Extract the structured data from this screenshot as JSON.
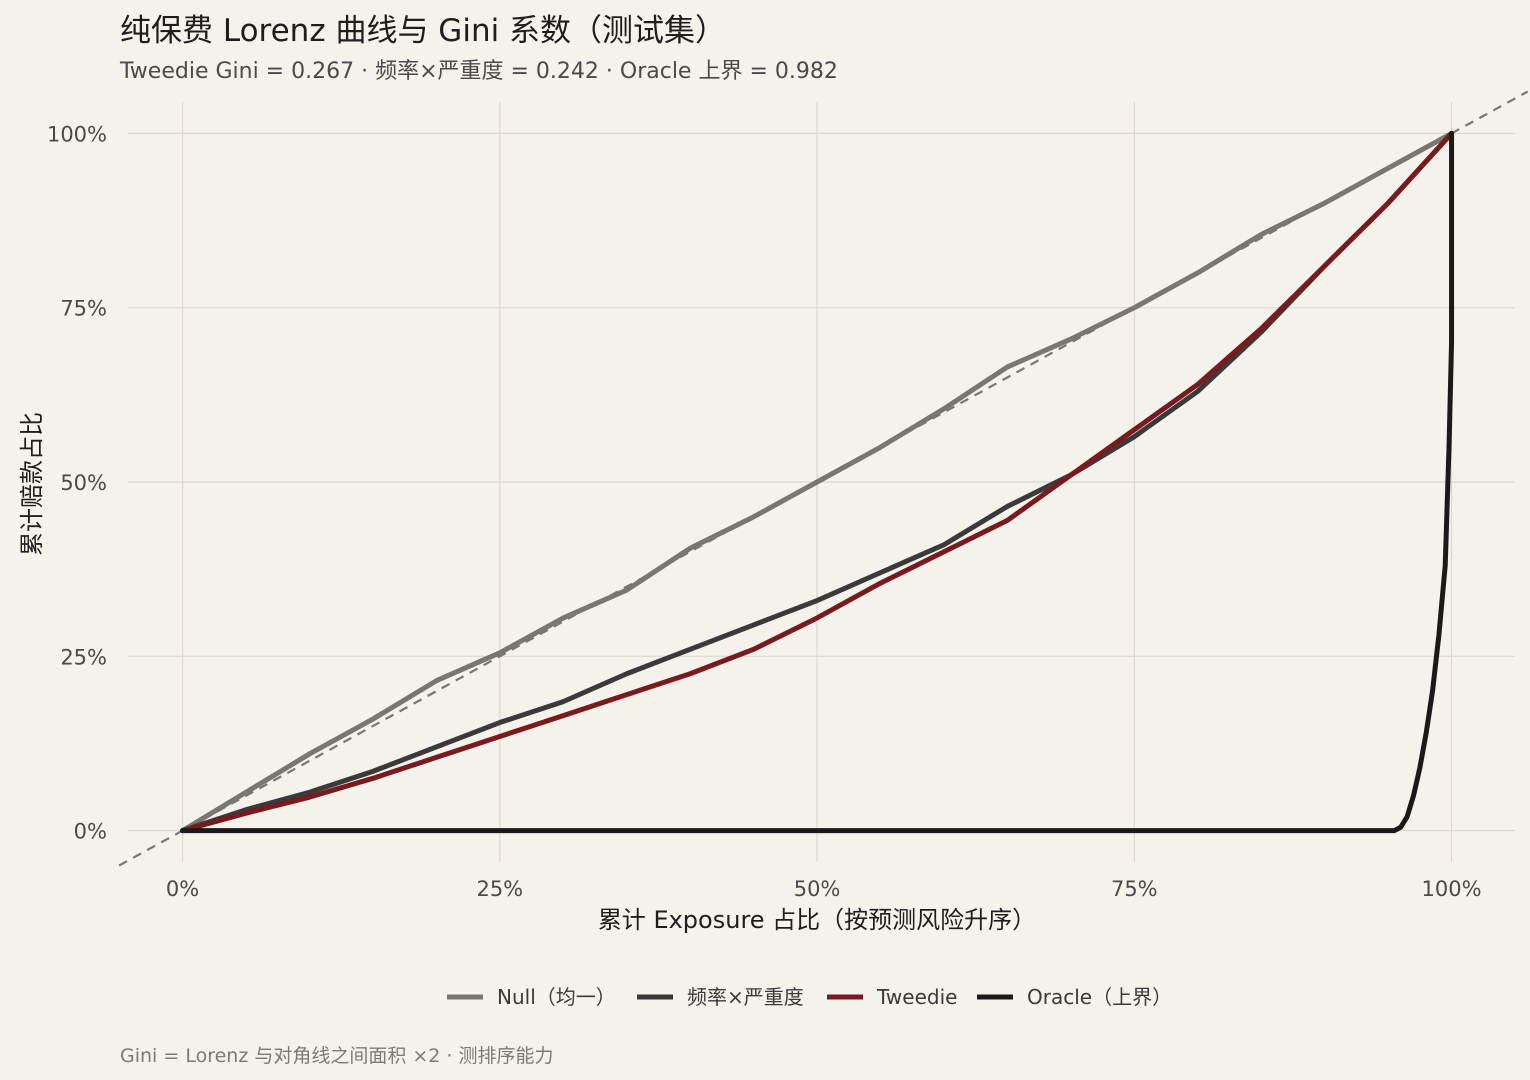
{
  "chart_data": {
    "type": "line",
    "title": "纯保费 Lorenz 曲线与 Gini 系数（测试集）",
    "subtitle": "Tweedie Gini = 0.267 ·   频率×严重度 = 0.242 ·   Oracle 上界 = 0.982",
    "xlabel": "累计 Exposure 占比（按预测风险升序）",
    "ylabel": "累计赔款占比",
    "caption": "Gini = Lorenz 与对角线之间面积 ×2 ·   测排序能力",
    "xlim": [
      -0.043,
      1.05
    ],
    "ylim": [
      -0.045,
      1.045
    ],
    "x_ticks": [
      0,
      0.25,
      0.5,
      0.75,
      1.0
    ],
    "x_tick_labels": [
      "0%",
      "25%",
      "50%",
      "75%",
      "100%"
    ],
    "y_ticks": [
      0,
      0.25,
      0.5,
      0.75,
      1.0
    ],
    "y_tick_labels": [
      "0%",
      "25%",
      "50%",
      "75%",
      "100%"
    ],
    "grid": true,
    "legend_position": "bottom",
    "reference_line": {
      "x": [
        -0.05,
        1.06
      ],
      "y": [
        -0.05,
        1.06
      ],
      "style": "dashed",
      "color": "#777777"
    },
    "series": [
      {
        "name": "Null（均一）",
        "color": "#7a7672",
        "x": [
          0,
          0.05,
          0.1,
          0.15,
          0.2,
          0.25,
          0.3,
          0.35,
          0.4,
          0.45,
          0.5,
          0.55,
          0.6,
          0.65,
          0.7,
          0.75,
          0.8,
          0.85,
          0.9,
          0.95,
          1.0
        ],
        "y": [
          0,
          0.055,
          0.11,
          0.16,
          0.215,
          0.255,
          0.305,
          0.345,
          0.405,
          0.45,
          0.5,
          0.55,
          0.605,
          0.665,
          0.705,
          0.75,
          0.8,
          0.855,
          0.9,
          0.95,
          1.0
        ]
      },
      {
        "name": "频率×严重度",
        "color": "#3a3a3a",
        "x": [
          0,
          0.05,
          0.1,
          0.15,
          0.2,
          0.25,
          0.3,
          0.35,
          0.4,
          0.45,
          0.5,
          0.55,
          0.6,
          0.65,
          0.7,
          0.75,
          0.8,
          0.85,
          0.9,
          0.95,
          1.0
        ],
        "y": [
          0,
          0.03,
          0.055,
          0.085,
          0.12,
          0.155,
          0.185,
          0.225,
          0.26,
          0.295,
          0.33,
          0.37,
          0.41,
          0.465,
          0.51,
          0.565,
          0.63,
          0.715,
          0.81,
          0.9,
          1.0
        ]
      },
      {
        "name": "Tweedie",
        "color": "#7a1a1e",
        "x": [
          0,
          0.05,
          0.1,
          0.15,
          0.2,
          0.25,
          0.3,
          0.35,
          0.4,
          0.45,
          0.5,
          0.55,
          0.6,
          0.65,
          0.7,
          0.75,
          0.8,
          0.85,
          0.9,
          0.95,
          1.0
        ],
        "y": [
          0,
          0.025,
          0.048,
          0.075,
          0.105,
          0.135,
          0.165,
          0.195,
          0.225,
          0.26,
          0.305,
          0.355,
          0.4,
          0.445,
          0.51,
          0.575,
          0.64,
          0.72,
          0.81,
          0.9,
          1.0
        ]
      },
      {
        "name": "Oracle（上界）",
        "color": "#1a1a1a",
        "x": [
          0,
          0.955,
          0.96,
          0.965,
          0.97,
          0.975,
          0.98,
          0.985,
          0.99,
          0.995,
          0.998,
          1.0,
          1.0
        ],
        "y": [
          0,
          0,
          0.005,
          0.02,
          0.05,
          0.09,
          0.14,
          0.2,
          0.28,
          0.38,
          0.55,
          0.7,
          1.0
        ]
      }
    ]
  }
}
